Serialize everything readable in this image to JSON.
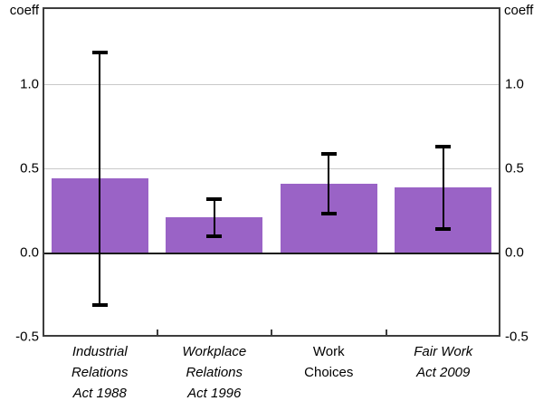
{
  "chart_data": {
    "type": "bar",
    "title": "",
    "ylabel_left": "coeff",
    "ylabel_right": "coeff",
    "ylim": [
      -0.5,
      1.46
    ],
    "grid": "horizontal",
    "gridlines_at": [
      1.0,
      0.5
    ],
    "zero_line_at": 0.0,
    "legend_position": "none",
    "yticks": [
      {
        "value": 1.0,
        "label": "1.0"
      },
      {
        "value": 0.5,
        "label": "0.5"
      },
      {
        "value": 0.0,
        "label": "0.0"
      },
      {
        "value": -0.5,
        "label": "-0.5"
      }
    ],
    "categories": [
      {
        "name": "Industrial Relations Act 1988",
        "lines": [
          "Industrial",
          "Relations",
          "Act 1988"
        ],
        "italic": true
      },
      {
        "name": "Workplace Relations Act 1996",
        "lines": [
          "Workplace",
          "Relations",
          "Act 1996"
        ],
        "italic": true
      },
      {
        "name": "Work Choices",
        "lines": [
          "Work",
          "Choices"
        ],
        "italic": false
      },
      {
        "name": "Fair Work Act 2009",
        "lines": [
          "Fair Work",
          "Act 2009"
        ],
        "italic": true
      }
    ],
    "series": [
      {
        "name": "coefficient estimate",
        "values": [
          0.44,
          0.21,
          0.41,
          0.39
        ],
        "error_low": [
          -0.31,
          0.1,
          0.23,
          0.14
        ],
        "error_high": [
          1.19,
          0.32,
          0.59,
          0.63
        ]
      }
    ],
    "colors": {
      "bar": "#9a63c6",
      "error_bar": "#000000",
      "gridline": "#c9c9c9",
      "axis": "#3d3d3d",
      "zero_line": "#1a1a1a",
      "text": "#000000",
      "background": "#ffffff"
    }
  }
}
